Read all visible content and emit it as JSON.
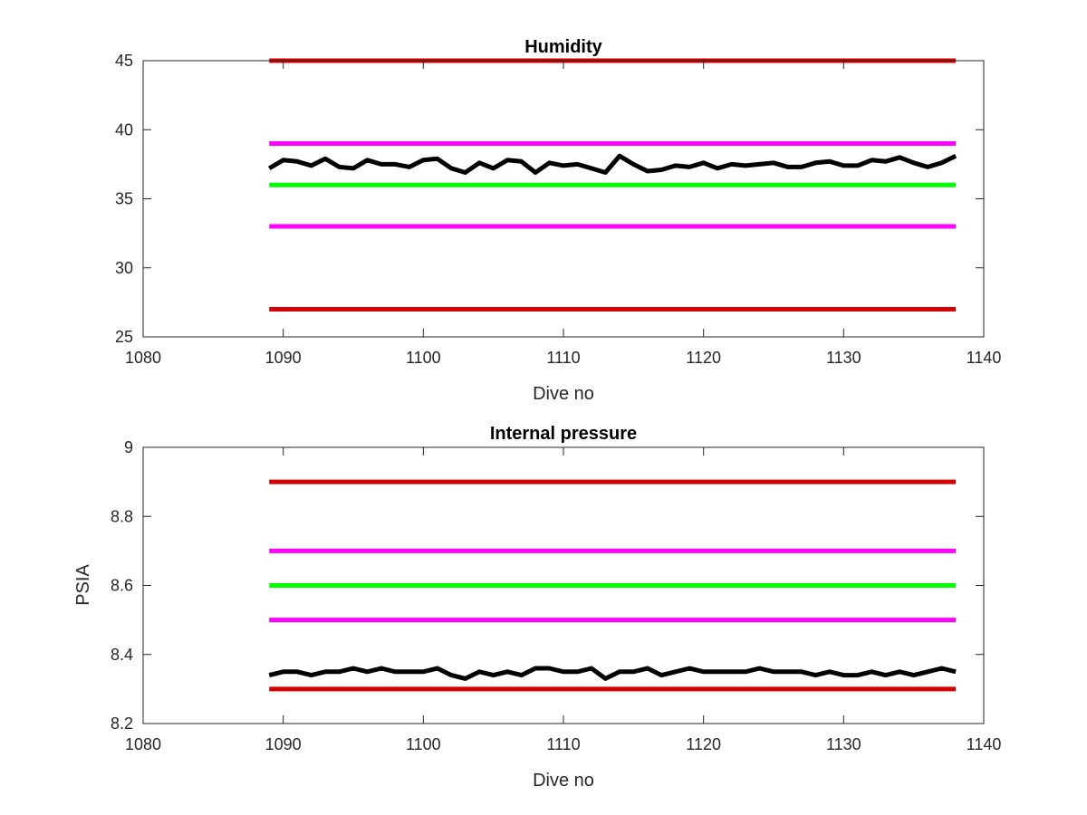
{
  "chart_data": [
    {
      "type": "line",
      "title": "Humidity",
      "xlabel": "Dive no",
      "ylabel": "",
      "xlim": [
        1080,
        1140
      ],
      "ylim": [
        25,
        45
      ],
      "xticks": [
        1080,
        1090,
        1100,
        1110,
        1120,
        1130,
        1140
      ],
      "yticks": [
        25,
        30,
        35,
        40,
        45
      ],
      "grid": false,
      "colors": {
        "limit_outer": "#d40000",
        "limit_inner": "#ff00ff",
        "target": "#00ff00",
        "measured": "#000000"
      },
      "series": [
        {
          "color": "#d40000",
          "x": [
            1089,
            1138
          ],
          "y": [
            45,
            45
          ]
        },
        {
          "color": "#ff00ff",
          "x": [
            1089,
            1138
          ],
          "y": [
            39,
            39
          ]
        },
        {
          "color": "#00ff00",
          "x": [
            1089,
            1138
          ],
          "y": [
            36,
            36
          ]
        },
        {
          "color": "#ff00ff",
          "x": [
            1089,
            1138
          ],
          "y": [
            33,
            33
          ]
        },
        {
          "color": "#d40000",
          "x": [
            1089,
            1138
          ],
          "y": [
            27,
            27
          ]
        },
        {
          "color": "#000000",
          "x": [
            1089,
            1090,
            1091,
            1092,
            1093,
            1094,
            1095,
            1096,
            1097,
            1098,
            1099,
            1100,
            1101,
            1102,
            1103,
            1104,
            1105,
            1106,
            1107,
            1108,
            1109,
            1110,
            1111,
            1112,
            1113,
            1114,
            1115,
            1116,
            1117,
            1118,
            1119,
            1120,
            1121,
            1122,
            1123,
            1124,
            1125,
            1126,
            1127,
            1128,
            1129,
            1130,
            1131,
            1132,
            1133,
            1134,
            1135,
            1136,
            1137,
            1138
          ],
          "y": [
            37.2,
            37.8,
            37.7,
            37.4,
            37.9,
            37.3,
            37.2,
            37.8,
            37.5,
            37.5,
            37.3,
            37.8,
            37.9,
            37.2,
            36.9,
            37.6,
            37.2,
            37.8,
            37.7,
            36.9,
            37.6,
            37.4,
            37.5,
            37.2,
            36.9,
            38.1,
            37.5,
            37.0,
            37.1,
            37.4,
            37.3,
            37.6,
            37.2,
            37.5,
            37.4,
            37.5,
            37.6,
            37.3,
            37.3,
            37.6,
            37.7,
            37.4,
            37.4,
            37.8,
            37.7,
            38.0,
            37.6,
            37.3,
            37.6,
            38.1
          ]
        }
      ]
    },
    {
      "type": "line",
      "title": "Internal pressure",
      "xlabel": "Dive no",
      "ylabel": "PSIA",
      "xlim": [
        1080,
        1140
      ],
      "ylim": [
        8.2,
        9
      ],
      "xticks": [
        1080,
        1090,
        1100,
        1110,
        1120,
        1130,
        1140
      ],
      "yticks": [
        8.2,
        8.4,
        8.6,
        8.8,
        9
      ],
      "grid": false,
      "colors": {
        "limit_outer": "#d40000",
        "limit_inner": "#ff00ff",
        "target": "#00ff00",
        "measured": "#000000"
      },
      "series": [
        {
          "color": "#d40000",
          "x": [
            1089,
            1138
          ],
          "y": [
            8.9,
            8.9
          ]
        },
        {
          "color": "#ff00ff",
          "x": [
            1089,
            1138
          ],
          "y": [
            8.7,
            8.7
          ]
        },
        {
          "color": "#00ff00",
          "x": [
            1089,
            1138
          ],
          "y": [
            8.6,
            8.6
          ]
        },
        {
          "color": "#ff00ff",
          "x": [
            1089,
            1138
          ],
          "y": [
            8.5,
            8.5
          ]
        },
        {
          "color": "#d40000",
          "x": [
            1089,
            1138
          ],
          "y": [
            8.3,
            8.3
          ]
        },
        {
          "color": "#000000",
          "x": [
            1089,
            1090,
            1091,
            1092,
            1093,
            1094,
            1095,
            1096,
            1097,
            1098,
            1099,
            1100,
            1101,
            1102,
            1103,
            1104,
            1105,
            1106,
            1107,
            1108,
            1109,
            1110,
            1111,
            1112,
            1113,
            1114,
            1115,
            1116,
            1117,
            1118,
            1119,
            1120,
            1121,
            1122,
            1123,
            1124,
            1125,
            1126,
            1127,
            1128,
            1129,
            1130,
            1131,
            1132,
            1133,
            1134,
            1135,
            1136,
            1137,
            1138
          ],
          "y": [
            8.34,
            8.35,
            8.35,
            8.34,
            8.35,
            8.35,
            8.36,
            8.35,
            8.36,
            8.35,
            8.35,
            8.35,
            8.36,
            8.34,
            8.33,
            8.35,
            8.34,
            8.35,
            8.34,
            8.36,
            8.36,
            8.35,
            8.35,
            8.36,
            8.33,
            8.35,
            8.35,
            8.36,
            8.34,
            8.35,
            8.36,
            8.35,
            8.35,
            8.35,
            8.35,
            8.36,
            8.35,
            8.35,
            8.35,
            8.34,
            8.35,
            8.34,
            8.34,
            8.35,
            8.34,
            8.35,
            8.34,
            8.35,
            8.36,
            8.35
          ]
        }
      ]
    }
  ]
}
